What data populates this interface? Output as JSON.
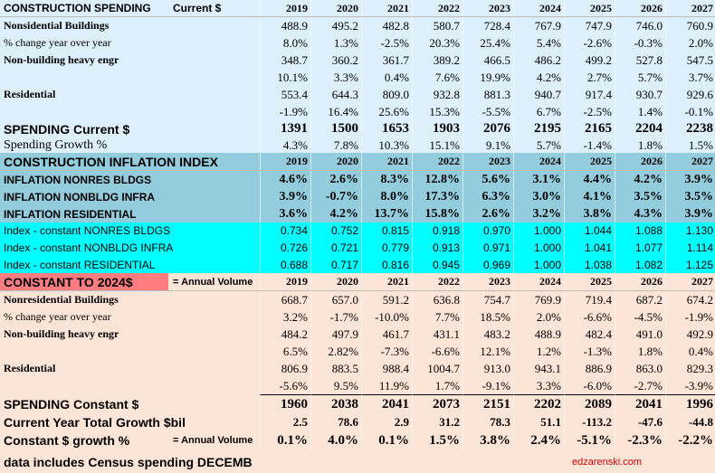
{
  "rows": [
    {
      "label": "CONSTRUCTION SPENDING",
      "note": "Current $",
      "cells": [
        "2019",
        "2020",
        "2021",
        "2022",
        "2023",
        "2024",
        "2025",
        "2026",
        "2027"
      ]
    },
    {
      "label": "Nonsidential Buildings",
      "cells": [
        "488.9",
        "495.2",
        "482.8",
        "580.7",
        "728.4",
        "767.9",
        "747.9",
        "746.0",
        "760.9"
      ]
    },
    {
      "label": "% change year over year",
      "cells": [
        "8.0%",
        "1.3%",
        "-2.5%",
        "20.3%",
        "25.4%",
        "5.4%",
        "-2.6%",
        "-0.3%",
        "2.0%"
      ]
    },
    {
      "label": "Non-building heavy engr",
      "cells": [
        "348.7",
        "360.2",
        "361.7",
        "389.2",
        "466.5",
        "486.2",
        "499.2",
        "527.8",
        "547.5"
      ]
    },
    {
      "cells": [
        "10.1%",
        "3.3%",
        "0.4%",
        "7.6%",
        "19.9%",
        "4.2%",
        "2.7%",
        "5.7%",
        "3.7%"
      ]
    },
    {
      "label": "Residential",
      "cells": [
        "553.4",
        "644.3",
        "809.0",
        "932.8",
        "881.3",
        "940.7",
        "917.4",
        "930.7",
        "929.6"
      ]
    },
    {
      "cells": [
        "-1.9%",
        "16.4%",
        "25.6%",
        "15.3%",
        "-5.5%",
        "6.7%",
        "-2.5%",
        "1.4%",
        "-0.1%"
      ]
    },
    {
      "label": "SPENDING Current $",
      "cells": [
        "1391",
        "1500",
        "1653",
        "1903",
        "2076",
        "2195",
        "2165",
        "2204",
        "2238"
      ]
    },
    {
      "label": "Spending Growth %",
      "cells": [
        "4.3%",
        "7.8%",
        "10.3%",
        "15.1%",
        "9.1%",
        "5.7%",
        "-1.4%",
        "1.8%",
        "1.5%"
      ]
    },
    {
      "label": "CONSTRUCTION INFLATION INDEX",
      "cells": [
        "2019",
        "2020",
        "2021",
        "2022",
        "2023",
        "2024",
        "2025",
        "2026",
        "2027"
      ]
    },
    {
      "label": "INFLATION NONRES BLDGS",
      "cells": [
        "4.6%",
        "2.6%",
        "8.3%",
        "12.8%",
        "5.6%",
        "3.1%",
        "4.4%",
        "4.2%",
        "3.9%"
      ]
    },
    {
      "label": "INFLATION NONBLDG INFRA",
      "cells": [
        "3.9%",
        "-0.7%",
        "8.0%",
        "17.3%",
        "6.3%",
        "3.0%",
        "4.1%",
        "3.5%",
        "3.5%"
      ]
    },
    {
      "label": "INFLATION RESIDENTIAL",
      "cells": [
        "3.6%",
        "4.2%",
        "13.7%",
        "15.8%",
        "2.6%",
        "3.2%",
        "3.8%",
        "4.3%",
        "3.9%"
      ]
    },
    {
      "label": "Index - constant NONRES BLDGS",
      "cells": [
        "0.734",
        "0.752",
        "0.815",
        "0.918",
        "0.970",
        "1.000",
        "1.044",
        "1.088",
        "1.130"
      ]
    },
    {
      "label": "Index - constant NONBLDG INFRA",
      "cells": [
        "0.726",
        "0.721",
        "0.779",
        "0.913",
        "0.971",
        "1.000",
        "1.041",
        "1.077",
        "1.114"
      ]
    },
    {
      "label": "Index - constant RESIDENTIAL",
      "cells": [
        "0.688",
        "0.717",
        "0.816",
        "0.945",
        "0.969",
        "1.000",
        "1.038",
        "1.082",
        "1.125"
      ]
    },
    {
      "label": "CONSTANT TO 2024$",
      "note": "= Annual Volume",
      "cells": [
        "2019",
        "2020",
        "2021",
        "2022",
        "2023",
        "2024",
        "2025",
        "2026",
        "2027"
      ]
    },
    {
      "label": "Nonresidential Buildings",
      "cells": [
        "668.7",
        "657.0",
        "591.2",
        "636.8",
        "754.7",
        "769.9",
        "719.4",
        "687.2",
        "674.2"
      ]
    },
    {
      "label": "% change year over year",
      "cells": [
        "3.2%",
        "-1.7%",
        "-10.0%",
        "7.7%",
        "18.5%",
        "2.0%",
        "-6.6%",
        "-4.5%",
        "-1.9%"
      ]
    },
    {
      "label": "Non-building heavy engr",
      "cells": [
        "484.2",
        "497.9",
        "461.7",
        "431.1",
        "483.2",
        "488.9",
        "482.4",
        "491.0",
        "492.9"
      ]
    },
    {
      "cells": [
        "6.5%",
        "2.82%",
        "-7.3%",
        "-6.6%",
        "12.1%",
        "1.2%",
        "-1.3%",
        "1.8%",
        "0.4%"
      ]
    },
    {
      "label": "Residential",
      "cells": [
        "806.9",
        "883.5",
        "988.4",
        "1004.7",
        "913.0",
        "943.1",
        "886.9",
        "863.0",
        "829.3"
      ]
    },
    {
      "cells": [
        "-5.6%",
        "9.5%",
        "11.9%",
        "1.7%",
        "-9.1%",
        "3.3%",
        "-6.0%",
        "-2.7%",
        "-3.9%"
      ]
    },
    {
      "label": "SPENDING Constant $",
      "cells": [
        "1960",
        "2038",
        "2041",
        "2073",
        "2151",
        "2202",
        "2089",
        "2041",
        "1996"
      ]
    },
    {
      "label": "Current Year Total Growth $bil",
      "cells": [
        "2.5",
        "78.6",
        "2.9",
        "31.2",
        "78.3",
        "51.1",
        "-113.2",
        "-47.6",
        "-44.8"
      ]
    },
    {
      "label": "Constant $ growth %",
      "note": "= Annual Volume",
      "cells": [
        "0.1%",
        "4.0%",
        "0.1%",
        "1.5%",
        "3.8%",
        "2.4%",
        "-5.1%",
        "-2.3%",
        "-2.2%"
      ]
    }
  ],
  "footer": {
    "text": "data includes Census spending DECEMB",
    "site": "edzarenski.com"
  }
}
